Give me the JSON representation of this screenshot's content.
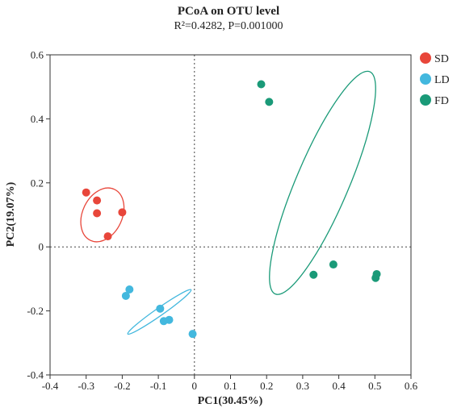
{
  "chart_data": {
    "type": "scatter",
    "title": "PCoA on OTU level",
    "subtitle": "R²=0.4282, P=0.001000",
    "xlabel": "PC1(30.45%)",
    "ylabel": "PC2(19.07%)",
    "xlim": [
      -0.4,
      0.6
    ],
    "ylim": [
      -0.4,
      0.6
    ],
    "x_ticks": [
      "-0.4",
      "-0.3",
      "-0.2",
      "-0.1",
      "0",
      "0.1",
      "0.2",
      "0.3",
      "0.4",
      "0.5",
      "0.6"
    ],
    "y_ticks": [
      "-0.4",
      "-0.2",
      "0",
      "0.2",
      "0.4",
      "0.6"
    ],
    "grid": false,
    "reference_lines": {
      "x": 0,
      "y": 0,
      "style": "dotted"
    },
    "legend_position": "top-right",
    "series": [
      {
        "name": "SD",
        "color": "#e8463a",
        "points": [
          [
            -0.3,
            0.17
          ],
          [
            -0.27,
            0.145
          ],
          [
            -0.27,
            0.105
          ],
          [
            -0.2,
            0.108
          ],
          [
            -0.24,
            0.033
          ]
        ],
        "ellipse": {
          "cx": -0.255,
          "cy": 0.1,
          "rx": 0.055,
          "ry": 0.088,
          "angle_deg": 25
        }
      },
      {
        "name": "LD",
        "color": "#43b8de",
        "points": [
          [
            -0.18,
            -0.133
          ],
          [
            -0.19,
            -0.153
          ],
          [
            -0.095,
            -0.193
          ],
          [
            -0.085,
            -0.232
          ],
          [
            -0.07,
            -0.228
          ],
          [
            -0.005,
            -0.272
          ]
        ],
        "ellipse": {
          "cx": -0.097,
          "cy": -0.203,
          "rx": 0.107,
          "ry": 0.012,
          "angle_deg": -35
        }
      },
      {
        "name": "FD",
        "color": "#1a9a78",
        "points": [
          [
            0.185,
            0.508
          ],
          [
            0.207,
            0.453
          ],
          [
            0.33,
            -0.087
          ],
          [
            0.385,
            -0.055
          ],
          [
            0.505,
            -0.085
          ],
          [
            0.502,
            -0.097
          ]
        ],
        "ellipse": {
          "cx": 0.355,
          "cy": 0.2,
          "rx": 0.335,
          "ry": 0.082,
          "angle_deg": -67
        }
      }
    ]
  }
}
